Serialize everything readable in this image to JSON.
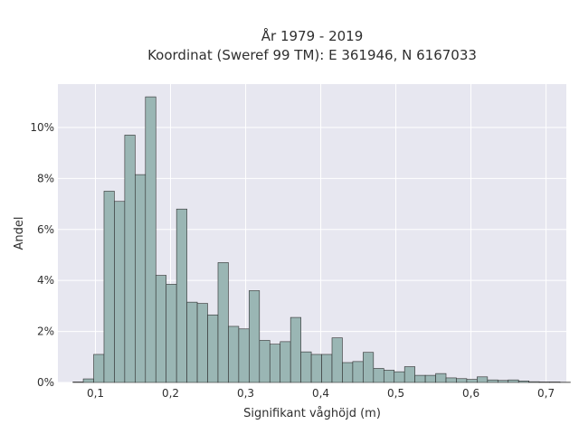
{
  "chart_data": {
    "type": "bar",
    "title_line1": "År 1979 - 2019",
    "title_line2": "Koordinat (Sweref 99 TM): E 361946, N 6167033",
    "xlabel": "Signifikant våghöjd (m)",
    "ylabel": "Andel",
    "xlim": [
      0.05,
      0.727
    ],
    "ylim": [
      0,
      11.7
    ],
    "x_ticks": [
      {
        "value": 0.1,
        "label": "0,1"
      },
      {
        "value": 0.2,
        "label": "0,2"
      },
      {
        "value": 0.3,
        "label": "0,3"
      },
      {
        "value": 0.4,
        "label": "0,4"
      },
      {
        "value": 0.5,
        "label": "0,5"
      },
      {
        "value": 0.6,
        "label": "0,6"
      },
      {
        "value": 0.7,
        "label": "0,7"
      }
    ],
    "y_ticks": [
      {
        "value": 0,
        "label": "0%"
      },
      {
        "value": 2,
        "label": "2%"
      },
      {
        "value": 4,
        "label": "4%"
      },
      {
        "value": 6,
        "label": "6%"
      },
      {
        "value": 8,
        "label": "8%"
      },
      {
        "value": 10,
        "label": "10%"
      }
    ],
    "grid": true,
    "bin_start": 0.07,
    "bin_width": 0.0138,
    "values": [
      0.02,
      0.14,
      1.1,
      7.5,
      7.1,
      9.7,
      8.15,
      11.2,
      4.2,
      3.85,
      6.8,
      3.15,
      3.1,
      2.65,
      4.7,
      2.2,
      2.1,
      3.6,
      1.65,
      1.5,
      1.6,
      2.55,
      1.2,
      1.1,
      1.1,
      1.75,
      0.78,
      0.82,
      1.18,
      0.55,
      0.48,
      0.42,
      0.62,
      0.28,
      0.28,
      0.35,
      0.18,
      0.15,
      0.12,
      0.22,
      0.1,
      0.08,
      0.1,
      0.06,
      0.03,
      0.02,
      0.02,
      0.01
    ],
    "colors": {
      "bar_fill": "#9ab6b4",
      "bar_stroke": "#2f2f2f",
      "plot_bg": "#e7e7f0",
      "grid": "#ffffff"
    }
  }
}
